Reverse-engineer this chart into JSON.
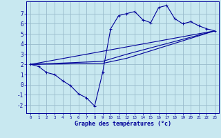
{
  "xlabel": "Graphe des températures (°c)",
  "background_color": "#c8e8f0",
  "grid_color": "#99bbcc",
  "line_color": "#000099",
  "xlim": [
    -0.5,
    23.5
  ],
  "ylim": [
    -2.8,
    8.2
  ],
  "xticks": [
    0,
    1,
    2,
    3,
    4,
    5,
    6,
    7,
    8,
    9,
    10,
    11,
    12,
    13,
    14,
    15,
    16,
    17,
    18,
    19,
    20,
    21,
    22,
    23
  ],
  "yticks": [
    -2,
    -1,
    0,
    1,
    2,
    3,
    4,
    5,
    6,
    7
  ],
  "line1_x": [
    0,
    1,
    2,
    3,
    4,
    5,
    6,
    7,
    8,
    9,
    10,
    11,
    12,
    13,
    14,
    15,
    16,
    17,
    18,
    19,
    20,
    21,
    22,
    23
  ],
  "line1_y": [
    2.0,
    1.8,
    1.2,
    1.0,
    0.4,
    -0.1,
    -0.9,
    -1.3,
    -2.1,
    1.2,
    5.5,
    6.8,
    7.0,
    7.2,
    6.4,
    6.1,
    7.6,
    7.8,
    6.5,
    6.0,
    6.2,
    5.8,
    5.5,
    5.3
  ],
  "line2_x": [
    0,
    23
  ],
  "line2_y": [
    2.0,
    5.3
  ],
  "line3_x": [
    0,
    9,
    12,
    23
  ],
  "line3_y": [
    2.0,
    2.1,
    2.6,
    5.3
  ],
  "line4_x": [
    0,
    9,
    12,
    23
  ],
  "line4_y": [
    2.0,
    2.3,
    3.0,
    5.3
  ],
  "xlabel_fontsize": 6.0,
  "tick_fontsize_x": 4.2,
  "tick_fontsize_y": 5.5
}
